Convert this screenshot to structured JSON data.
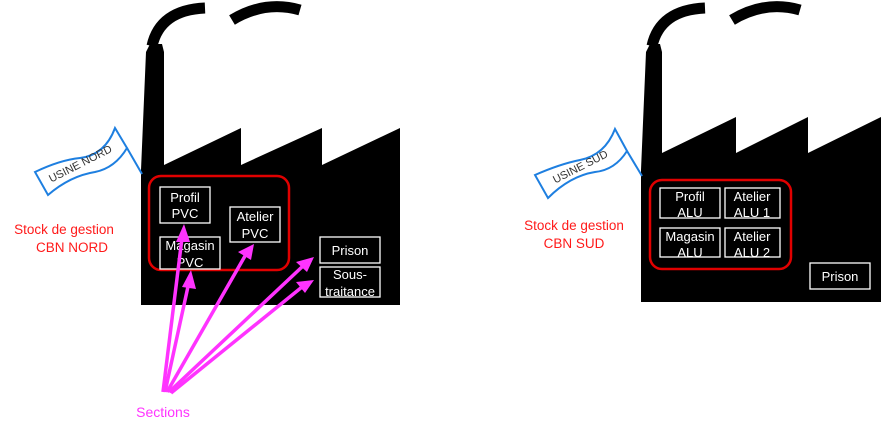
{
  "colors": {
    "factory": "#000000",
    "stock_outline": "#e00000",
    "stock_label": "#ff1a1a",
    "flag_outline": "#1e7fe0",
    "arrows": "#ff33ff"
  },
  "north": {
    "flag": "USINE NORD",
    "stock_label": [
      "Stock de gestion",
      "CBN NORD"
    ],
    "sections": [
      {
        "line1": "Profil",
        "line2": "PVC"
      },
      {
        "line1": "Atelier",
        "line2": "PVC"
      },
      {
        "line1": "Magasin",
        "line2": "PVC"
      },
      {
        "line1": "Prison",
        "line2": ""
      },
      {
        "line1": "Sous-",
        "line2": "traitance"
      }
    ]
  },
  "south": {
    "flag": "USINE SUD",
    "stock_label": [
      "Stock de gestion",
      "CBN SUD"
    ],
    "sections": [
      {
        "line1": "Profil",
        "line2": "ALU"
      },
      {
        "line1": "Atelier",
        "line2": "ALU 1"
      },
      {
        "line1": "Magasin",
        "line2": "ALU"
      },
      {
        "line1": "Atelier",
        "line2": "ALU 2"
      },
      {
        "line1": "Prison",
        "line2": ""
      }
    ]
  },
  "sections_label": "Sections"
}
